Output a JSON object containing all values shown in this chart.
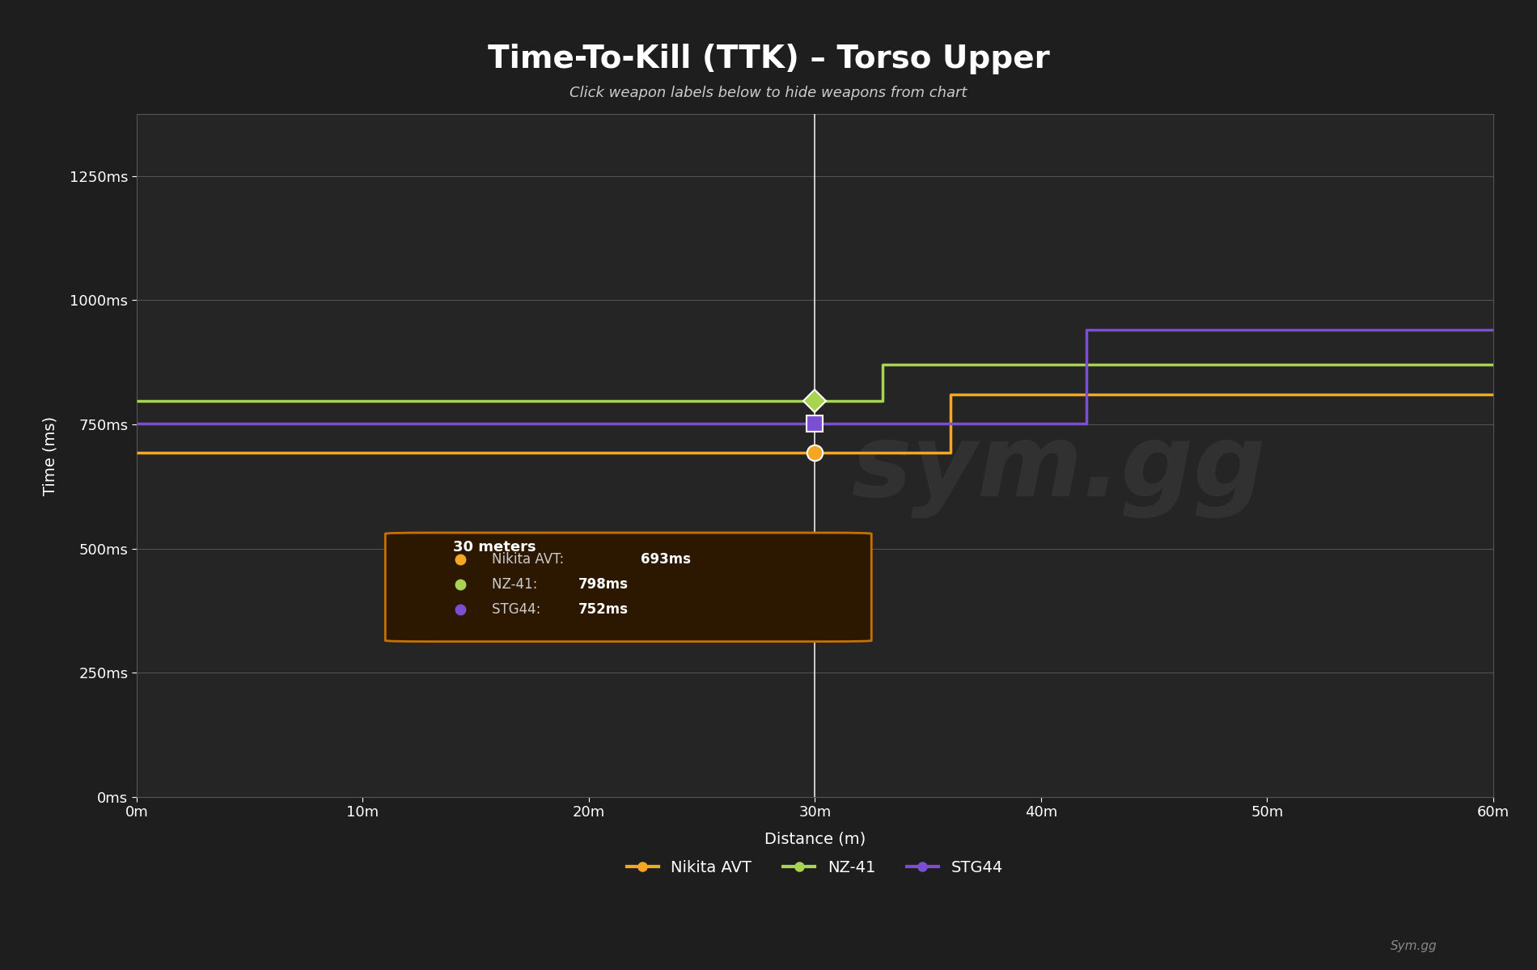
{
  "title": "Time-To-Kill (TTK) – Torso Upper",
  "subtitle": "Click weapon labels below to hide weapons from chart",
  "xlabel": "Distance (m)",
  "ylabel": "Time (ms)",
  "bg_color": "#1e1e1e",
  "plot_bg_color": "#252525",
  "text_color": "#ffffff",
  "subtitle_color": "#cccccc",
  "credit": "Sym.gg",
  "xlim": [
    0,
    60
  ],
  "ylim": [
    0,
    1375
  ],
  "xticks": [
    0,
    10,
    20,
    30,
    40,
    50,
    60
  ],
  "yticks": [
    0,
    250,
    500,
    750,
    1000,
    1250
  ],
  "ytick_labels": [
    "0ms",
    "250ms",
    "500ms",
    "750ms",
    "1000ms",
    "1250ms"
  ],
  "xtick_labels": [
    "0m",
    "10m",
    "20m",
    "30m",
    "40m",
    "50m",
    "60m"
  ],
  "crosshair_x": 30,
  "tooltip": {
    "x": 30,
    "label": "30 meters",
    "entries": [
      {
        "weapon": "Nikita AVT",
        "value": "693ms",
        "color": "#f5a623"
      },
      {
        "weapon": "NZ-41",
        "value": "798ms",
        "color": "#a8d44f"
      },
      {
        "weapon": "STG44",
        "value": "752ms",
        "color": "#7b4fd4"
      }
    ]
  },
  "series": [
    {
      "name": "Nikita AVT",
      "color": "#f5a623",
      "marker": "o",
      "data_x": [
        0,
        36,
        36,
        60
      ],
      "data_y": [
        693,
        693,
        810,
        810
      ]
    },
    {
      "name": "NZ-41",
      "color": "#a8d44f",
      "marker": "D",
      "data_x": [
        0,
        33,
        33,
        60
      ],
      "data_y": [
        798,
        798,
        870,
        870
      ]
    },
    {
      "name": "STG44",
      "color": "#7b4fd4",
      "marker": "s",
      "data_x": [
        0,
        42,
        42,
        60
      ],
      "data_y": [
        752,
        752,
        940,
        940
      ]
    }
  ]
}
